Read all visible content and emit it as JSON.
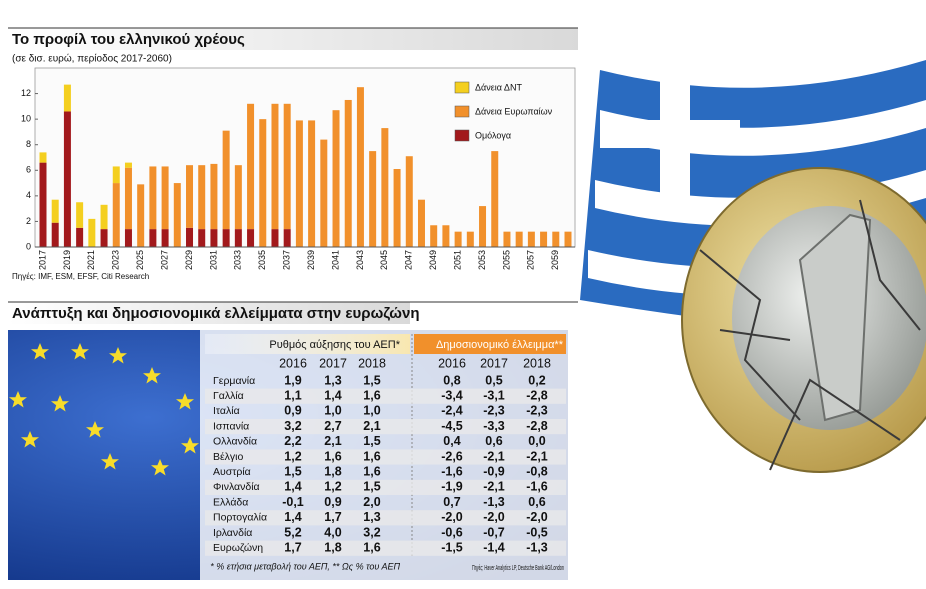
{
  "chart_data": {
    "type": "bar",
    "stacked": true,
    "title": "Το προφίλ του ελληνικού χρέους",
    "subtitle": "(σε δισ. ευρώ, περίοδος 2017-2060)",
    "source": "Πηγές: IMF, ESM, EFSF, Citi Research",
    "categories": [
      "2017",
      null,
      "2019",
      null,
      "2021",
      null,
      "2023",
      null,
      "2025",
      null,
      "2027",
      null,
      "2029",
      null,
      "2031",
      null,
      "2033",
      null,
      "2035",
      null,
      "2037",
      null,
      "2039",
      null,
      "2041",
      null,
      "2043",
      null,
      "2045",
      null,
      "2047",
      null,
      "2049",
      null,
      "2051",
      null,
      "2053",
      null,
      "2055",
      null,
      "2057",
      null,
      "2059",
      null
    ],
    "series": [
      {
        "name": "Δάνεια ΔΝΤ",
        "color": "#f4cf1f",
        "values": [
          0.8,
          1.8,
          2.1,
          2.0,
          2.2,
          1.9,
          1.3,
          0.4,
          0,
          0,
          0,
          0,
          0,
          0,
          0,
          0,
          0,
          0,
          0,
          0,
          0,
          0,
          0,
          0,
          0,
          0,
          0,
          0,
          0,
          0,
          0,
          0,
          0,
          0,
          0,
          0,
          0,
          0,
          0,
          0,
          0,
          0,
          0,
          0
        ]
      },
      {
        "name": "Δάνεια Ευρωπαίων",
        "color": "#f1902b",
        "values": [
          0,
          0,
          0,
          0,
          0,
          0,
          5.0,
          4.8,
          4.9,
          4.9,
          4.9,
          5.0,
          4.9,
          5.0,
          5.1,
          7.7,
          5.0,
          9.8,
          10.0,
          9.8,
          9.8,
          9.9,
          9.9,
          8.4,
          10.7,
          11.5,
          12.5,
          7.5,
          9.3,
          6.1,
          7.1,
          3.7,
          1.7,
          1.7,
          1.2,
          1.2,
          3.2,
          7.5,
          1.2,
          1.2,
          1.2,
          1.2,
          1.2,
          1.2
        ]
      },
      {
        "name": "Ομόλογα",
        "color": "#a2191c",
        "values": [
          6.6,
          1.9,
          10.6,
          1.5,
          0,
          1.4,
          0,
          1.4,
          0,
          1.4,
          1.4,
          0,
          1.5,
          1.4,
          1.4,
          1.4,
          1.4,
          1.4,
          0,
          1.4,
          1.4,
          0,
          0,
          0,
          0,
          0,
          0,
          0,
          0,
          0,
          0,
          0,
          0,
          0,
          0,
          0,
          0,
          0,
          0,
          0,
          0,
          0,
          0,
          0
        ]
      }
    ],
    "ylim": [
      0,
      14
    ],
    "yticks": [
      0,
      2,
      4,
      6,
      8,
      10,
      12
    ],
    "legend": "top-right"
  },
  "table": {
    "title": "Ανάπτυξη και δημοσιονομικά ελλείμματα στην ευρωζώνη",
    "groups": [
      "Ρυθμός αύξησης του ΑΕΠ*",
      "Δημοσιονομικό έλλειμμα**"
    ],
    "columns": [
      "2016",
      "2017",
      "2018",
      "2016",
      "2017",
      "2018"
    ],
    "rows": [
      [
        "Γερμανία",
        "1,9",
        "1,3",
        "1,5",
        "0,8",
        "0,5",
        "0,2"
      ],
      [
        "Γαλλία",
        "1,1",
        "1,4",
        "1,6",
        "-3,4",
        "-3,1",
        "-2,8"
      ],
      [
        "Ιταλία",
        "0,9",
        "1,0",
        "1,0",
        "-2,4",
        "-2,3",
        "-2,3"
      ],
      [
        "Ισπανία",
        "3,2",
        "2,7",
        "2,1",
        "-4,5",
        "-3,3",
        "-2,8"
      ],
      [
        "Ολλανδία",
        "2,2",
        "2,1",
        "1,5",
        "0,4",
        "0,6",
        "0,0"
      ],
      [
        "Βέλγιο",
        "1,2",
        "1,6",
        "1,6",
        "-2,6",
        "-2,1",
        "-2,1"
      ],
      [
        "Αυστρία",
        "1,5",
        "1,8",
        "1,6",
        "-1,6",
        "-0,9",
        "-0,8"
      ],
      [
        "Φινλανδία",
        "1,4",
        "1,2",
        "1,5",
        "-1,9",
        "-2,1",
        "-1,6"
      ],
      [
        "Ελλάδα",
        "-0,1",
        "0,9",
        "2,0",
        "0,7",
        "-1,3",
        "0,6"
      ],
      [
        "Πορτογαλία",
        "1,4",
        "1,7",
        "1,3",
        "-2,0",
        "-2,0",
        "-2,0"
      ],
      [
        "Ιρλανδία",
        "5,2",
        "4,0",
        "3,2",
        "-0,6",
        "-0,7",
        "-0,5"
      ],
      [
        "Ευρωζώνη",
        "1,7",
        "1,8",
        "1,6",
        "-1,5",
        "-1,4",
        "-1,3"
      ]
    ],
    "footnote": "* % ετήσια μεταβολή του ΑΕΠ, ** Ως % του ΑΕΠ",
    "source": "Πηγές: Haver Analytics LP, Deutsche Bank AG/London"
  }
}
